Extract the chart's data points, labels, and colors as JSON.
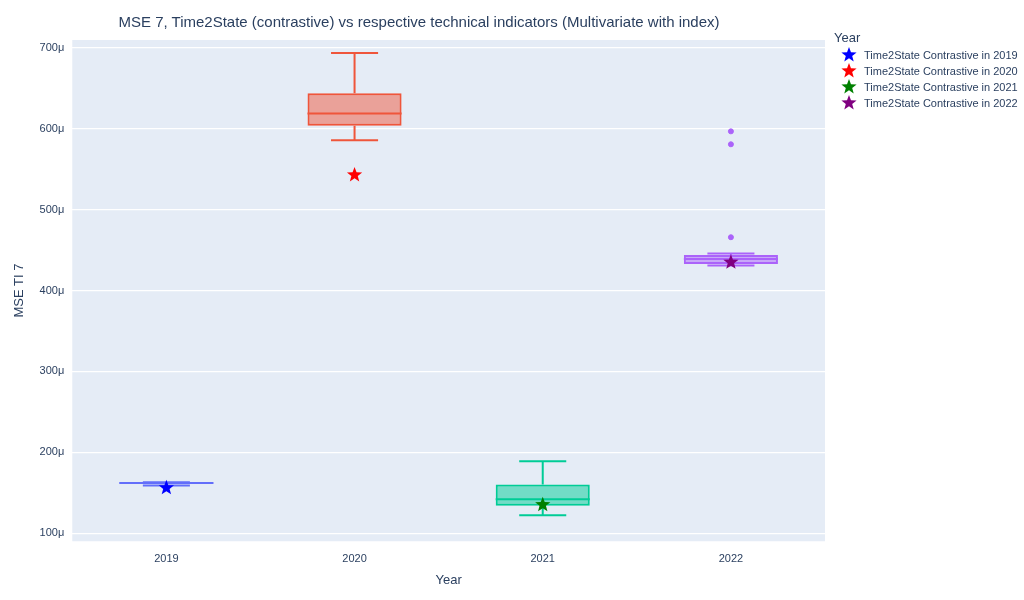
{
  "chart_data": {
    "type": "box",
    "title": "MSE 7, Time2State (contrastive) vs respective technical indicators (Multivariate with index)",
    "xlabel": "Year",
    "ylabel": "MSE TI 7",
    "legend_title": "Year",
    "legend": "top right",
    "grid": "y",
    "marker": "star",
    "categories": [
      "2019",
      "2020",
      "2021",
      "2022"
    ],
    "ylim": [
      90,
      710
    ],
    "yticks": [
      {
        "value": 100,
        "label": "100μ"
      },
      {
        "value": 200,
        "label": "200μ"
      },
      {
        "value": 300,
        "label": "300μ"
      },
      {
        "value": 400,
        "label": "400μ"
      },
      {
        "value": 500,
        "label": "500μ"
      },
      {
        "value": 600,
        "label": "600μ"
      },
      {
        "value": 700,
        "label": "700μ"
      }
    ],
    "series": [
      {
        "colors": [
          "#636efa",
          "#ef553b",
          "#00cc96",
          "#ab63fa"
        ],
        "boxes": [
          {
            "low": 159,
            "q1": 161,
            "median": 162,
            "q3": 163,
            "high": 163
          },
          {
            "low": 586,
            "q1": 604,
            "median": 619,
            "q3": 644,
            "high": 694
          },
          {
            "low": 122,
            "q1": 134,
            "median": 142,
            "q3": 160,
            "high": 189
          },
          {
            "low": 431,
            "q1": 433,
            "median": 439,
            "q3": 444,
            "high": 446,
            "outliers": [
              597,
              581,
              466
            ]
          }
        ]
      },
      {
        "type": "scatter",
        "name": "Time2State Contrastive in 2019",
        "color": "#0000ff",
        "values": [
          156,
          null,
          null,
          null
        ]
      },
      {
        "type": "scatter",
        "name": "Time2State Contrastive in 2020",
        "color": "#ff0000",
        "values": [
          null,
          543,
          null,
          null
        ]
      },
      {
        "type": "scatter",
        "name": "Time2State Contrastive in 2021",
        "color": "#008000",
        "values": [
          null,
          null,
          135,
          null
        ]
      },
      {
        "type": "scatter",
        "name": "Time2State Contrastive in 2022",
        "color": "#800080",
        "values": [
          null,
          null,
          null,
          435
        ]
      }
    ]
  }
}
